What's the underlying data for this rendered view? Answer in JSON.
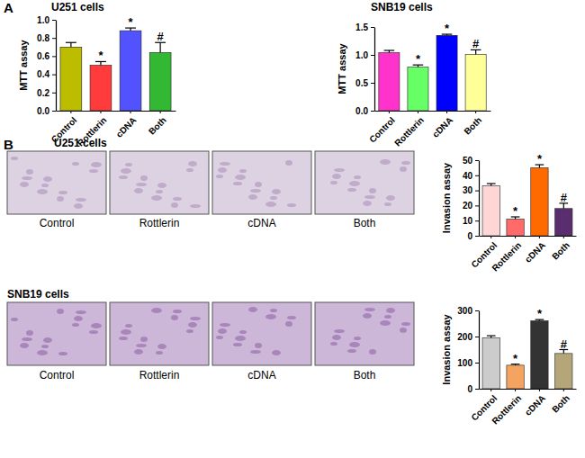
{
  "chart_data": [
    {
      "type": "bar",
      "title": "U251 cells",
      "y_label": "MTT assay",
      "categories": [
        "Control",
        "Rottlerin",
        "cDNA",
        "Both"
      ],
      "values": [
        0.7,
        0.5,
        0.88,
        0.64
      ],
      "errors": [
        0.05,
        0.04,
        0.03,
        0.11
      ],
      "significance": [
        null,
        "*",
        "*",
        "#"
      ],
      "colors": [
        "#bdbd00",
        "#ff3b3b",
        "#5252ff",
        "#33b833"
      ],
      "ylim": [
        0,
        1.0
      ],
      "yticks": [
        {
          "value": 0,
          "label": "0.0"
        },
        {
          "value": 0.2,
          "label": "0.2"
        },
        {
          "value": 0.4,
          "label": "0.4"
        },
        {
          "value": 0.6,
          "label": "0.6"
        },
        {
          "value": 0.8,
          "label": "0.8"
        },
        {
          "value": 1.0,
          "label": "1.0"
        }
      ]
    },
    {
      "type": "bar",
      "title": "SNB19 cells",
      "y_label": "MTT assay",
      "categories": [
        "Control",
        "Rottlerin",
        "cDNA",
        "Both"
      ],
      "values": [
        1.04,
        0.78,
        1.35,
        1.01
      ],
      "errors": [
        0.04,
        0.04,
        0.02,
        0.08
      ],
      "significance": [
        null,
        "*",
        "*",
        "#"
      ],
      "colors": [
        "#ff33cc",
        "#66ff66",
        "#0000ff",
        "#ffff99"
      ],
      "ylim": [
        0,
        1.5
      ],
      "yticks": [
        {
          "value": 0,
          "label": "0.0"
        },
        {
          "value": 0.5,
          "label": "0.5"
        },
        {
          "value": 1.0,
          "label": "1.0"
        },
        {
          "value": 1.5,
          "label": "1.5"
        }
      ]
    },
    {
      "type": "bar",
      "y_label": "Invasion assay",
      "categories": [
        "Control",
        "Rottlerin",
        "cDNA",
        "Both"
      ],
      "values": [
        33,
        11,
        45,
        18
      ],
      "errors": [
        1.5,
        1.5,
        2,
        3.5
      ],
      "significance": [
        null,
        "*",
        "*",
        "#"
      ],
      "colors": [
        "#ffd6d6",
        "#ff6b6b",
        "#ff6a00",
        "#5a2d6e"
      ],
      "ylim": [
        0,
        50
      ],
      "yticks": [
        0,
        10,
        20,
        30,
        40,
        50
      ]
    },
    {
      "type": "bar",
      "y_label": "Invasion assay",
      "categories": [
        "Control",
        "Rottlerin",
        "cDNA",
        "Both"
      ],
      "values": [
        195,
        90,
        260,
        135
      ],
      "errors": [
        8,
        4,
        5,
        15
      ],
      "significance": [
        null,
        "*",
        "*",
        "#"
      ],
      "colors": [
        "#cccccc",
        "#f4a460",
        "#333333",
        "#b5a67a"
      ],
      "ylim": [
        0,
        300
      ],
      "yticks": [
        0,
        100,
        200,
        300
      ]
    }
  ],
  "figure": {
    "panel_labels": [
      "A",
      "B"
    ],
    "image_rows": [
      {
        "title": "U251 cells",
        "captions": [
          "Control",
          "Rottlerin",
          "cDNA",
          "Both"
        ]
      },
      {
        "title": "SNB19 cells",
        "captions": [
          "Control",
          "Rottlerin",
          "cDNA",
          "Both"
        ]
      }
    ]
  }
}
